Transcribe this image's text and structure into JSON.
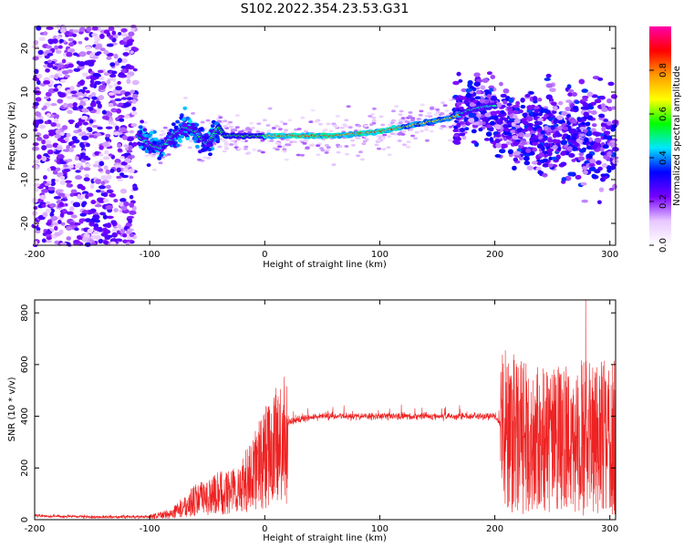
{
  "title": "S102.2022.354.23.53.G31",
  "chart_data": [
    {
      "type": "heatmap",
      "xlabel": "Height of straight line (km)",
      "ylabel": "Frequency (Hz)",
      "xlim": [
        -200,
        305
      ],
      "ylim": [
        -25,
        25
      ],
      "xticks": [
        -200,
        -100,
        0,
        100,
        200,
        300
      ],
      "yticks": [
        -20,
        -10,
        0,
        10,
        20
      ],
      "colorbar": {
        "label": "Normalized spectral amplitude",
        "range": [
          0,
          1
        ],
        "ticks": [
          "0.0",
          "0.2",
          "0.4",
          "0.6",
          "0.8"
        ],
        "colors": [
          "#ffffff",
          "#e8c8ff",
          "#7700ff",
          "#0000ff",
          "#00e6ff",
          "#00ff00",
          "#ffff00",
          "#ff9900",
          "#ff0000",
          "#ff00aa"
        ]
      },
      "ridge": {
        "x": [
          -110,
          -100,
          -90,
          -80,
          -70,
          -60,
          -50,
          -45,
          -40,
          -35,
          -30,
          -20,
          0,
          20,
          40,
          60,
          80,
          100,
          120,
          140,
          160,
          170,
          180,
          190,
          200
        ],
        "y": [
          0,
          -2,
          -3,
          0,
          2,
          1,
          -2,
          0,
          2,
          0,
          0,
          0,
          0,
          0,
          0,
          0,
          0.5,
          1,
          2,
          3,
          4,
          5,
          6,
          6.5,
          7
        ]
      }
    },
    {
      "type": "line",
      "xlabel": "Height of straight line (km)",
      "ylabel": "SNR (10 * v/v)",
      "xlim": [
        -200,
        305
      ],
      "ylim": [
        0,
        850
      ],
      "xticks": [
        -200,
        -100,
        0,
        100,
        200,
        300
      ],
      "yticks": [
        0,
        200,
        400,
        600,
        800
      ],
      "series": [
        {
          "color": "#ee2222",
          "envelope_x": [
            -200,
            -150,
            -100,
            -80,
            -70,
            -60,
            -50,
            -40,
            -30,
            -20,
            -10,
            0,
            10,
            20,
            30,
            50,
            80,
            100,
            150,
            200,
            210,
            220,
            250,
            280,
            305
          ],
          "envelope_y": [
            15,
            10,
            12,
            30,
            60,
            90,
            100,
            120,
            130,
            150,
            220,
            280,
            330,
            370,
            390,
            400,
            400,
            400,
            400,
            400,
            350,
            320,
            300,
            320,
            320
          ],
          "peak": {
            "x": 279,
            "y": 850
          }
        }
      ]
    }
  ]
}
